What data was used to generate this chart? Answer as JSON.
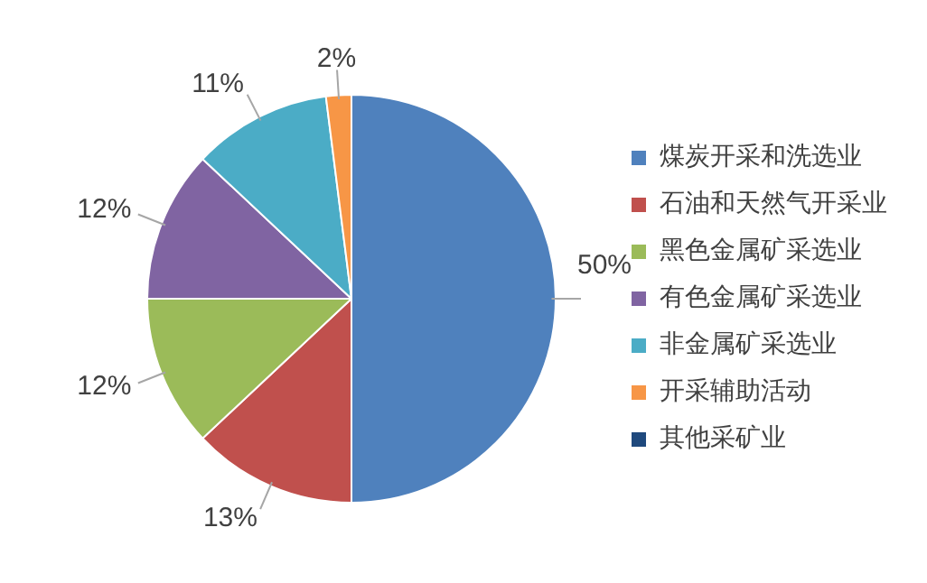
{
  "chart_data": {
    "type": "pie",
    "categories": [
      "煤炭开采和洗选业",
      "石油和天然气开采业",
      "黑色金属矿采选业",
      "有色金属矿采选业",
      "非金属矿采选业",
      "开采辅助活动",
      "其他采矿业"
    ],
    "values": [
      50,
      13,
      12,
      12,
      11,
      2,
      0
    ],
    "colors": [
      "#4f81bd",
      "#c0504d",
      "#9bbb59",
      "#8064a2",
      "#4bacc6",
      "#f79646",
      "#1f497d"
    ],
    "value_labels": [
      "50%",
      "13%",
      "12%",
      "12%",
      "11%",
      "2%",
      null
    ],
    "legend": "right"
  }
}
